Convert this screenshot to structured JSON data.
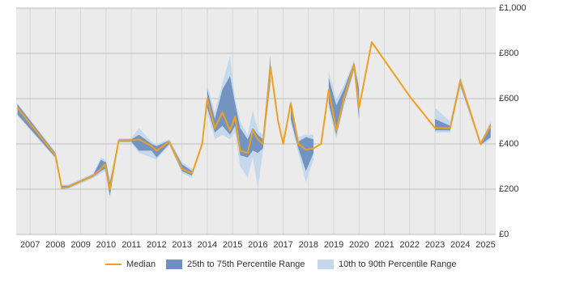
{
  "chart_data": {
    "type": "percentile-band-line",
    "x": [
      2006.5,
      2008.0,
      2008.25,
      2008.5,
      2009.5,
      2009.8,
      2009.95,
      2010.0,
      2010.15,
      2010.5,
      2011.0,
      2011.3,
      2011.8,
      2012.0,
      2012.5,
      2013.0,
      2013.4,
      2013.8,
      2014.0,
      2014.3,
      2014.6,
      2014.9,
      2015.1,
      2015.3,
      2015.6,
      2015.8,
      2016.0,
      2016.2,
      2016.5,
      2016.8,
      2017.0,
      2017.3,
      2017.6,
      2017.9,
      2018.2,
      2018.5,
      2018.8,
      2019.1,
      2019.4,
      2019.8,
      2020.0,
      2020.5,
      2022.0,
      2023.0,
      2023.6,
      2024.0,
      2024.8,
      2025.2
    ],
    "series": [
      {
        "name": "Median",
        "color": "#f0a020",
        "values": [
          560,
          350,
          205,
          210,
          260,
          290,
          310,
          290,
          200,
          415,
          415,
          420,
          390,
          370,
          410,
          290,
          270,
          400,
          600,
          470,
          540,
          460,
          520,
          370,
          360,
          460,
          420,
          400,
          740,
          500,
          400,
          580,
          400,
          375,
          380,
          400,
          640,
          460,
          600,
          750,
          560,
          850,
          610,
          470,
          470,
          680,
          400,
          480
        ]
      },
      {
        "name": "25th to 75th Percentile Range",
        "color": "#6f8fbf",
        "low": [
          530,
          340,
          200,
          205,
          255,
          280,
          290,
          270,
          170,
          410,
          410,
          370,
          370,
          340,
          400,
          280,
          260,
          null,
          560,
          450,
          480,
          440,
          480,
          350,
          340,
          370,
          360,
          380,
          680,
          null,
          null,
          510,
          380,
          280,
          360,
          null,
          580,
          440,
          580,
          730,
          510,
          null,
          null,
          460,
          460,
          660,
          395,
          430
        ],
        "high": [
          575,
          360,
          215,
          215,
          265,
          330,
          320,
          320,
          230,
          420,
          420,
          440,
          400,
          390,
          415,
          310,
          280,
          null,
          640,
          510,
          640,
          700,
          580,
          470,
          420,
          470,
          440,
          420,
          790,
          null,
          null,
          590,
          410,
          430,
          420,
          null,
          690,
          570,
          640,
          760,
          640,
          null,
          null,
          510,
          480,
          690,
          405,
          490
        ]
      },
      {
        "name": "10th to 90th Percentile Range",
        "color": "#c6d9ec",
        "low": [
          525,
          335,
          200,
          200,
          250,
          270,
          280,
          260,
          160,
          405,
          405,
          360,
          340,
          330,
          395,
          270,
          250,
          null,
          540,
          420,
          440,
          420,
          450,
          300,
          250,
          340,
          200,
          370,
          650,
          null,
          null,
          490,
          360,
          230,
          330,
          null,
          560,
          420,
          560,
          720,
          480,
          null,
          null,
          450,
          450,
          650,
          390,
          420
        ],
        "high": [
          580,
          365,
          220,
          220,
          270,
          340,
          330,
          330,
          240,
          425,
          425,
          470,
          410,
          400,
          420,
          320,
          290,
          null,
          660,
          540,
          670,
          790,
          600,
          500,
          440,
          550,
          460,
          440,
          800,
          null,
          null,
          600,
          430,
          440,
          440,
          null,
          720,
          600,
          660,
          770,
          660,
          null,
          null,
          560,
          500,
          700,
          410,
          500
        ]
      }
    ],
    "xlim": [
      2006.45,
      2025.4
    ],
    "xticks": [
      2007,
      2008,
      2009,
      2010,
      2011,
      2012,
      2013,
      2014,
      2015,
      2016,
      2017,
      2018,
      2019,
      2020,
      2021,
      2022,
      2023,
      2024,
      2025
    ],
    "ylim": [
      0,
      1000
    ],
    "yticks": [
      {
        "value": 0,
        "label": "£0"
      },
      {
        "value": 200,
        "label": "£200"
      },
      {
        "value": 400,
        "label": "£400"
      },
      {
        "value": 600,
        "label": "£600"
      },
      {
        "value": 800,
        "label": "£800"
      },
      {
        "value": 1000,
        "label": "£1,000"
      }
    ],
    "grid": true
  }
}
